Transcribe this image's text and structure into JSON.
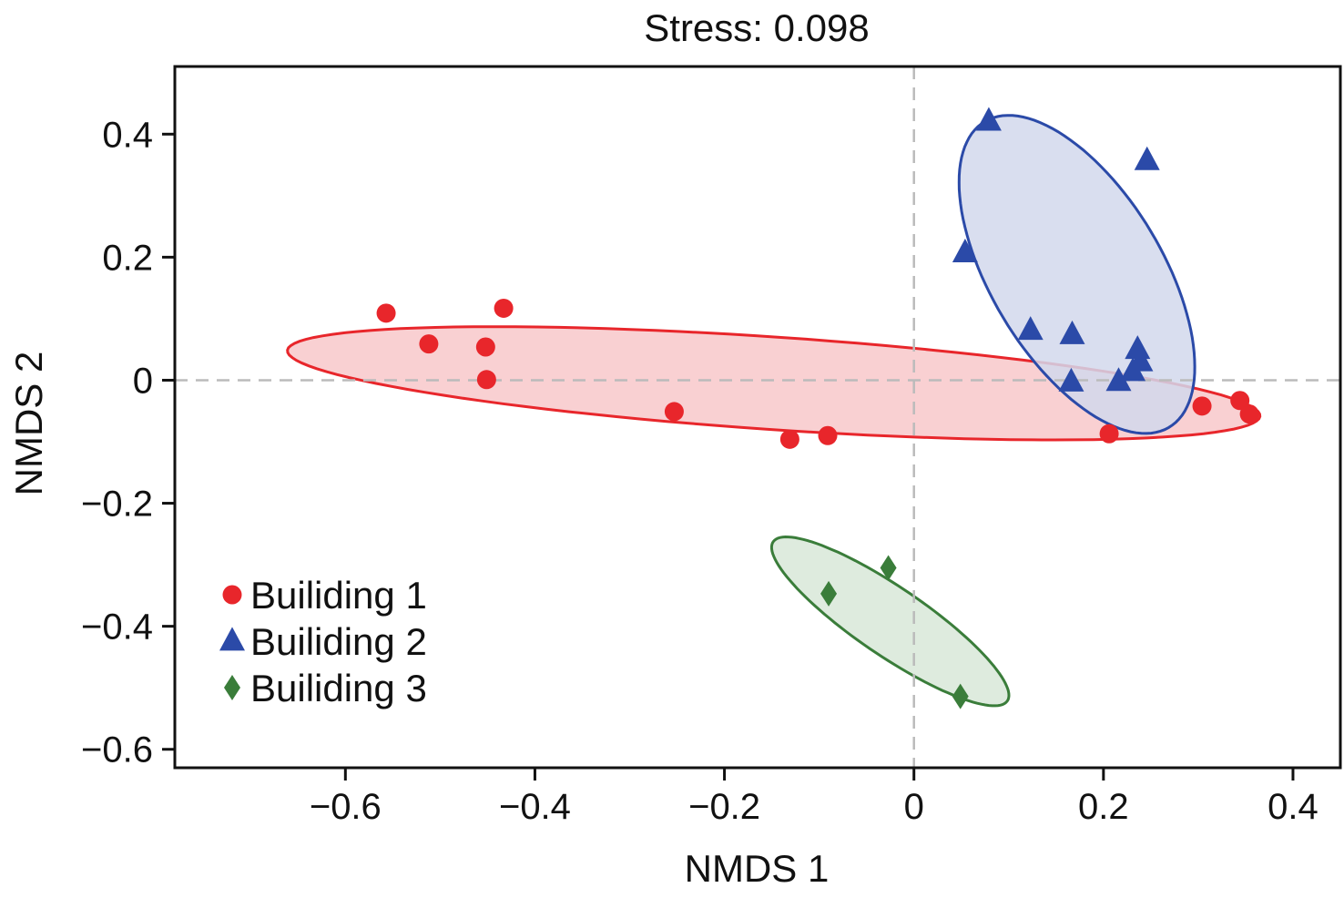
{
  "chart_data": {
    "type": "scatter",
    "title": "Stress: 0.098",
    "xlabel": "NMDS 1",
    "ylabel": "NMDS 2",
    "xlim": [
      -0.78,
      0.45
    ],
    "ylim": [
      -0.63,
      0.51
    ],
    "xticks": [
      -0.6,
      -0.4,
      -0.2,
      0,
      0.2,
      0.4
    ],
    "xtick_labels": [
      "−0.6",
      "−0.4",
      "−0.2",
      "0",
      "0.2",
      "0.4"
    ],
    "yticks": [
      0.4,
      0.2,
      0,
      -0.2,
      -0.4,
      -0.6
    ],
    "ytick_labels": [
      "0.4",
      "0.2",
      "0",
      "−0.2",
      "−0.4",
      "−0.6"
    ],
    "grid": false,
    "reference_lines": {
      "x": 0,
      "y": 0,
      "style": "dashed",
      "color": "#bbbbbb"
    },
    "legend_position": "bottom-left",
    "series": [
      {
        "name": "Builiding 1",
        "marker": "circle",
        "color": "#e8262b",
        "points": [
          {
            "x": -0.557,
            "y": 0.109
          },
          {
            "x": -0.512,
            "y": 0.059
          },
          {
            "x": -0.452,
            "y": 0.054
          },
          {
            "x": -0.433,
            "y": 0.117
          },
          {
            "x": -0.451,
            "y": 0.001
          },
          {
            "x": -0.253,
            "y": -0.051
          },
          {
            "x": -0.131,
            "y": -0.096
          },
          {
            "x": -0.091,
            "y": -0.09
          },
          {
            "x": 0.206,
            "y": -0.087
          },
          {
            "x": 0.304,
            "y": -0.042
          },
          {
            "x": 0.344,
            "y": -0.033
          },
          {
            "x": 0.354,
            "y": -0.055
          }
        ],
        "ellipse": {
          "cx": -0.148,
          "cy": -0.005,
          "rx": 0.516,
          "ry": 0.075,
          "rotation_deg": -6.0,
          "fill": "#f8c8ca",
          "stroke": "#e8262b"
        }
      },
      {
        "name": "Builiding 2",
        "marker": "triangle",
        "color": "#2b4aa8",
        "points": [
          {
            "x": 0.079,
            "y": 0.421
          },
          {
            "x": 0.246,
            "y": 0.357
          },
          {
            "x": 0.054,
            "y": 0.207
          },
          {
            "x": 0.123,
            "y": 0.081
          },
          {
            "x": 0.167,
            "y": 0.074
          },
          {
            "x": 0.236,
            "y": 0.05
          },
          {
            "x": 0.239,
            "y": 0.03
          },
          {
            "x": 0.231,
            "y": 0.014
          },
          {
            "x": 0.216,
            "y": -0.002
          },
          {
            "x": 0.166,
            "y": -0.003
          }
        ],
        "ellipse": {
          "cx": 0.172,
          "cy": 0.172,
          "rx": 0.27,
          "ry": 0.097,
          "rotation_deg": -72.0,
          "fill": "#d2d8ec",
          "stroke": "#2b4aa8"
        }
      },
      {
        "name": "Builiding 3",
        "marker": "diamond",
        "color": "#3a7d3a",
        "points": [
          {
            "x": -0.027,
            "y": -0.305
          },
          {
            "x": -0.09,
            "y": -0.347
          },
          {
            "x": 0.049,
            "y": -0.514
          }
        ],
        "ellipse": {
          "cx": -0.025,
          "cy": -0.392,
          "rx": 0.18,
          "ry": 0.046,
          "rotation_deg": -48.0,
          "fill": "#d8e8d8",
          "stroke": "#3a7d3a"
        }
      }
    ]
  }
}
